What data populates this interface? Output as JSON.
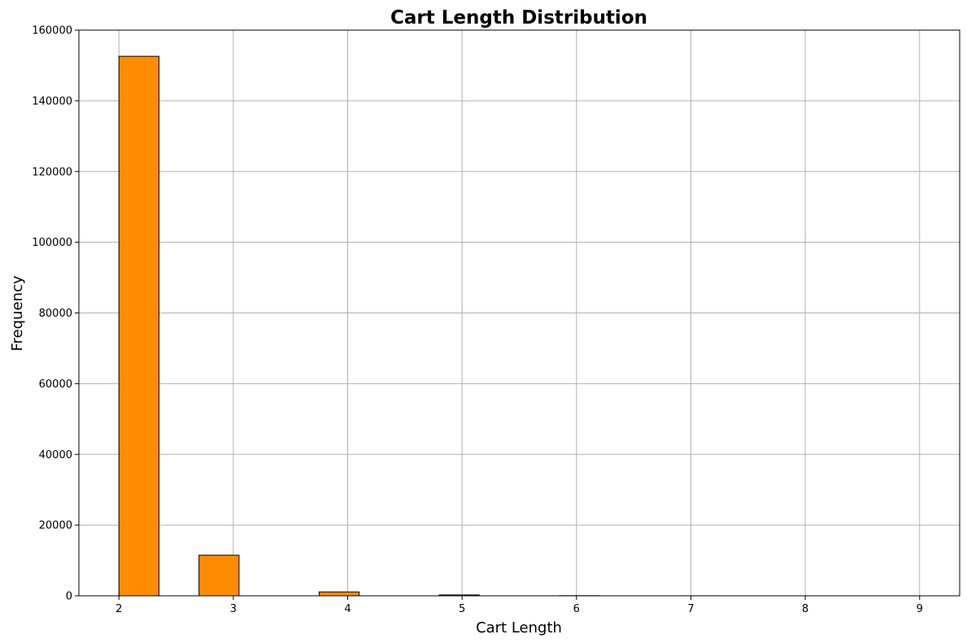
{
  "chart_data": {
    "type": "bar",
    "title": "Cart Length Distribution",
    "xlabel": "Cart Length",
    "ylabel": "Frequency",
    "xlim": [
      1.65,
      9.35
    ],
    "ylim": [
      0,
      160000
    ],
    "x_ticks": [
      2,
      3,
      4,
      5,
      6,
      7,
      8,
      9
    ],
    "y_ticks": [
      0,
      20000,
      40000,
      60000,
      80000,
      100000,
      120000,
      140000,
      160000
    ],
    "grid": true,
    "bar_color": "#ff8c00",
    "edge_color": "#000000",
    "bins": [
      {
        "start": 2.0,
        "end": 2.35,
        "value": 152600
      },
      {
        "start": 2.7,
        "end": 3.05,
        "value": 11500
      },
      {
        "start": 3.75,
        "end": 4.1,
        "value": 1100
      },
      {
        "start": 4.8,
        "end": 5.15,
        "value": 250
      },
      {
        "start": 5.85,
        "end": 6.2,
        "value": 40
      },
      {
        "start": 6.9,
        "end": 7.25,
        "value": 8
      },
      {
        "start": 7.95,
        "end": 8.3,
        "value": 2
      },
      {
        "start": 8.65,
        "end": 9.0,
        "value": 1
      }
    ]
  }
}
